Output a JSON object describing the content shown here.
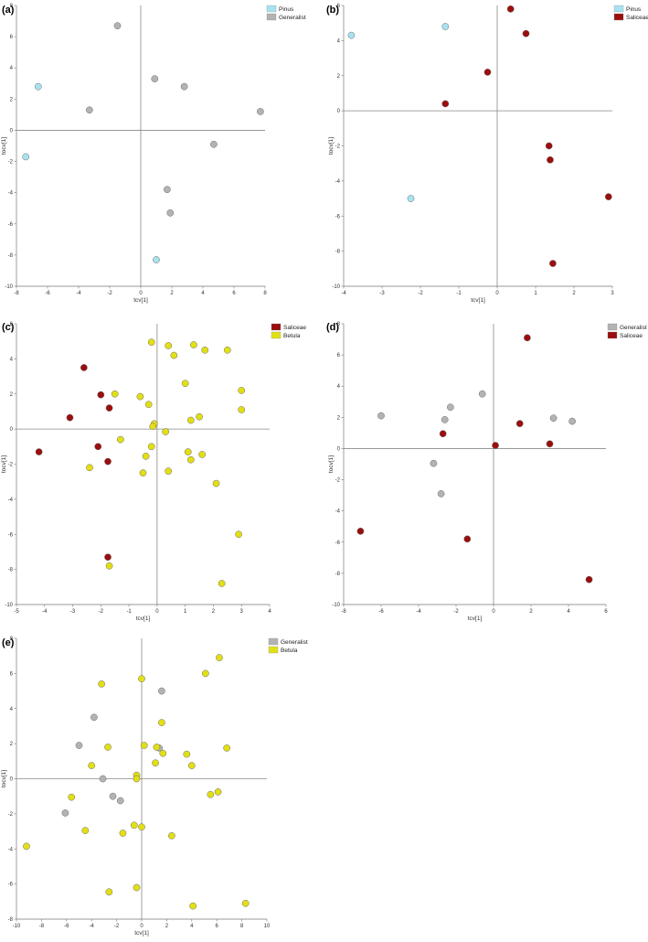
{
  "chart_data": [
    {
      "type": "scatter",
      "panel_label": "(a)",
      "xlabel": "tcv[1]",
      "ylabel": "tocv[1]",
      "xlim": [
        -8,
        8
      ],
      "ylim": [
        -10,
        8
      ],
      "xticks": [
        -8,
        -6,
        -4,
        -2,
        0,
        2,
        4,
        6,
        8
      ],
      "yticks": [
        -10,
        -8,
        -6,
        -4,
        -2,
        0,
        2,
        4,
        6,
        8
      ],
      "legend_position": "top-right",
      "series": [
        {
          "name": "Pinus",
          "color": "#a7e3ef",
          "points": [
            [
              -6.6,
              2.8
            ],
            [
              -7.4,
              -1.7
            ],
            [
              1.0,
              -8.3
            ]
          ]
        },
        {
          "name": "Generalist",
          "color": "#b3b3b3",
          "points": [
            [
              -1.5,
              6.7
            ],
            [
              0.9,
              3.3
            ],
            [
              2.8,
              2.8
            ],
            [
              -3.3,
              1.3
            ],
            [
              7.7,
              1.2
            ],
            [
              4.7,
              -0.9
            ],
            [
              1.7,
              -3.8
            ],
            [
              1.9,
              -5.3
            ]
          ]
        }
      ]
    },
    {
      "type": "scatter",
      "panel_label": "(b)",
      "xlabel": "tcv[1]",
      "ylabel": "tocv[1]",
      "xlim": [
        -4,
        3
      ],
      "ylim": [
        -10,
        6
      ],
      "xticks": [
        -4,
        -3,
        -2,
        -1,
        0,
        1,
        2,
        3
      ],
      "yticks": [
        -10,
        -8,
        -6,
        -4,
        -2,
        0,
        2,
        4,
        6
      ],
      "legend_position": "top-right",
      "series": [
        {
          "name": "Pinus",
          "color": "#a7e3ef",
          "points": [
            [
              -3.8,
              4.3
            ],
            [
              -1.35,
              4.8
            ],
            [
              -2.25,
              -5.0
            ]
          ]
        },
        {
          "name": "Saliceae",
          "color": "#9b0e0e",
          "points": [
            [
              0.35,
              5.8
            ],
            [
              0.75,
              4.4
            ],
            [
              -0.25,
              2.2
            ],
            [
              -1.35,
              0.4
            ],
            [
              1.35,
              -2.0
            ],
            [
              1.38,
              -2.8
            ],
            [
              2.9,
              -4.9
            ],
            [
              1.45,
              -8.7
            ]
          ]
        }
      ]
    },
    {
      "type": "scatter",
      "panel_label": "(c)",
      "xlabel": "tcv[1]",
      "ylabel": "tocv[1]",
      "xlim": [
        -5,
        4
      ],
      "ylim": [
        -10,
        6
      ],
      "xticks": [
        -5,
        -4,
        -3,
        -2,
        -1,
        0,
        1,
        2,
        3,
        4
      ],
      "yticks": [
        -10,
        -8,
        -6,
        -4,
        -2,
        0,
        2,
        4,
        6
      ],
      "legend_position": "top-right",
      "series": [
        {
          "name": "Saliceae",
          "color": "#9b0e0e",
          "points": [
            [
              -2.6,
              3.5
            ],
            [
              -2.0,
              1.95
            ],
            [
              -1.7,
              1.2
            ],
            [
              -3.1,
              0.65
            ],
            [
              -4.2,
              -1.3
            ],
            [
              -2.1,
              -1.0
            ],
            [
              -1.75,
              -1.85
            ],
            [
              -1.75,
              -7.3
            ]
          ]
        },
        {
          "name": "Betula",
          "color": "#e2df14",
          "points": [
            [
              -0.2,
              4.95
            ],
            [
              0.4,
              4.75
            ],
            [
              1.3,
              4.8
            ],
            [
              1.7,
              4.5
            ],
            [
              2.5,
              4.5
            ],
            [
              0.6,
              4.2
            ],
            [
              1.0,
              2.6
            ],
            [
              3.0,
              2.2
            ],
            [
              -1.5,
              2.0
            ],
            [
              -0.6,
              1.85
            ],
            [
              -0.3,
              1.4
            ],
            [
              3.0,
              1.1
            ],
            [
              1.5,
              0.7
            ],
            [
              1.2,
              0.5
            ],
            [
              -0.1,
              0.3
            ],
            [
              -0.15,
              0.15
            ],
            [
              0.3,
              -0.15
            ],
            [
              -1.3,
              -0.6
            ],
            [
              -0.2,
              -1.0
            ],
            [
              1.1,
              -1.3
            ],
            [
              -0.4,
              -1.55
            ],
            [
              1.6,
              -1.45
            ],
            [
              1.2,
              -1.75
            ],
            [
              -2.4,
              -2.2
            ],
            [
              -0.5,
              -2.5
            ],
            [
              0.4,
              -2.4
            ],
            [
              2.1,
              -3.1
            ],
            [
              2.9,
              -6.0
            ],
            [
              -1.7,
              -7.8
            ],
            [
              2.3,
              -8.8
            ]
          ]
        }
      ]
    },
    {
      "type": "scatter",
      "panel_label": "(d)",
      "xlabel": "tcv[1]",
      "ylabel": "tocv[1]",
      "xlim": [
        -8,
        6
      ],
      "ylim": [
        -10,
        8
      ],
      "xticks": [
        -8,
        -6,
        -4,
        -2,
        0,
        2,
        4,
        6
      ],
      "yticks": [
        -10,
        -8,
        -6,
        -4,
        -2,
        0,
        2,
        4,
        6,
        8
      ],
      "legend_position": "top-right",
      "series": [
        {
          "name": "Generalist",
          "color": "#b3b3b3",
          "points": [
            [
              -6.0,
              2.1
            ],
            [
              -2.3,
              2.65
            ],
            [
              -0.6,
              3.5
            ],
            [
              -2.6,
              1.85
            ],
            [
              3.2,
              1.95
            ],
            [
              4.2,
              1.75
            ],
            [
              -3.2,
              -0.95
            ],
            [
              -2.8,
              -2.9
            ]
          ]
        },
        {
          "name": "Saliceae",
          "color": "#9b0e0e",
          "points": [
            [
              1.8,
              7.1
            ],
            [
              1.4,
              1.6
            ],
            [
              -2.7,
              0.95
            ],
            [
              0.1,
              0.2
            ],
            [
              3.0,
              0.3
            ],
            [
              -7.1,
              -5.3
            ],
            [
              -1.4,
              -5.8
            ],
            [
              5.1,
              -8.4
            ]
          ]
        }
      ]
    },
    {
      "type": "scatter",
      "panel_label": "(e)",
      "xlabel": "tcv[1]",
      "ylabel": "tocv[1]",
      "xlim": [
        -10,
        10
      ],
      "ylim": [
        -8,
        8
      ],
      "xticks": [
        -10,
        -8,
        -6,
        -4,
        -2,
        0,
        2,
        4,
        6,
        8,
        10
      ],
      "yticks": [
        -8,
        -6,
        -4,
        -2,
        0,
        2,
        4,
        6,
        8
      ],
      "legend_position": "top-right",
      "series": [
        {
          "name": "Generalist",
          "color": "#b3b3b3",
          "points": [
            [
              1.6,
              5.0
            ],
            [
              -3.8,
              3.5
            ],
            [
              -5.0,
              1.9
            ],
            [
              1.4,
              1.75
            ],
            [
              -3.1,
              0.0
            ],
            [
              -6.1,
              -1.95
            ],
            [
              -2.3,
              -1.0
            ],
            [
              -1.7,
              -1.25
            ]
          ]
        },
        {
          "name": "Betula",
          "color": "#e2df14",
          "points": [
            [
              6.2,
              6.9
            ],
            [
              5.1,
              6.0
            ],
            [
              0.0,
              5.7
            ],
            [
              -3.2,
              5.4
            ],
            [
              1.6,
              3.2
            ],
            [
              -2.7,
              1.8
            ],
            [
              0.2,
              1.9
            ],
            [
              1.2,
              1.8
            ],
            [
              6.8,
              1.75
            ],
            [
              1.7,
              1.45
            ],
            [
              3.6,
              1.4
            ],
            [
              1.1,
              0.9
            ],
            [
              -4.0,
              0.75
            ],
            [
              4.0,
              0.75
            ],
            [
              -0.4,
              0.2
            ],
            [
              -0.4,
              0.0
            ],
            [
              -5.6,
              -1.05
            ],
            [
              5.5,
              -0.9
            ],
            [
              6.1,
              -0.75
            ],
            [
              -0.6,
              -2.65
            ],
            [
              0.0,
              -2.75
            ],
            [
              -4.5,
              -2.95
            ],
            [
              -1.5,
              -3.1
            ],
            [
              2.4,
              -3.25
            ],
            [
              -9.2,
              -3.85
            ],
            [
              -2.6,
              -6.45
            ],
            [
              -0.4,
              -6.2
            ],
            [
              4.1,
              -7.25
            ],
            [
              8.3,
              -7.1
            ]
          ]
        }
      ]
    }
  ]
}
